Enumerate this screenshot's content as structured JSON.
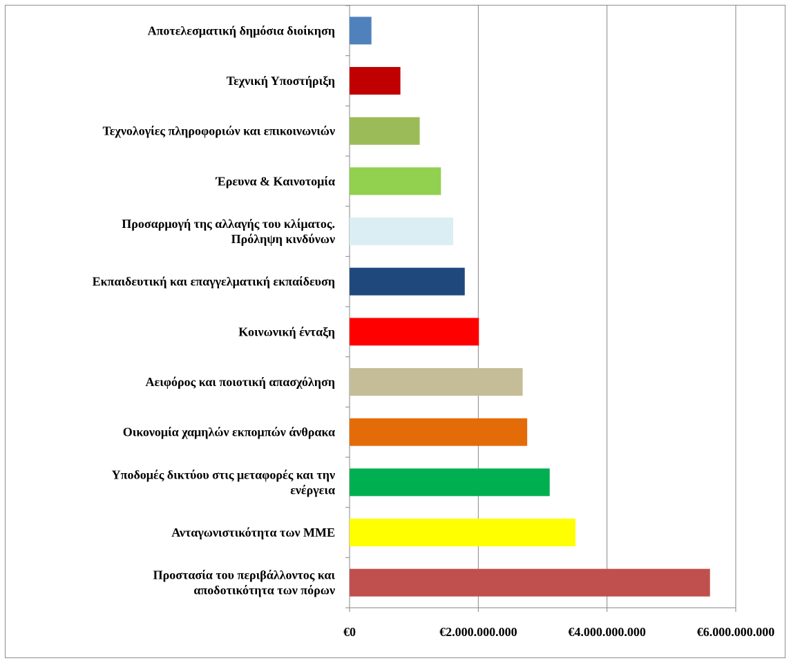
{
  "chart_data": {
    "type": "bar",
    "orientation": "horizontal",
    "categories": [
      [
        "Αποτελεσματική δημόσια διοίκηση"
      ],
      [
        "Τεχνική Υποστήριξη"
      ],
      [
        "Τεχνολογίες πληροφοριών και επικοινωνιών"
      ],
      [
        "Έρευνα & Καινοτομία"
      ],
      [
        "Προσαρμογή της αλλαγής του κλίματος.",
        "Πρόληψη κινδύνων"
      ],
      [
        "Εκπαιδευτική και επαγγελματική εκπαίδευση"
      ],
      [
        "Κοινωνική ένταξη"
      ],
      [
        "Αειφόρος και ποιοτική απασχόληση"
      ],
      [
        "Οικονομία χαμηλών εκπομπών άνθρακα"
      ],
      [
        "Υποδομές δικτύου στις μεταφορές και την",
        "ενέργεια"
      ],
      [
        "Ανταγωνιστικότητα των ΜΜΕ"
      ],
      [
        "Προστασία του περιβάλλοντος και",
        "αποδοτικότητα των πόρων"
      ]
    ],
    "values": [
      340000000,
      790000000,
      1090000000,
      1420000000,
      1610000000,
      1790000000,
      2010000000,
      2690000000,
      2760000000,
      3110000000,
      3510000000,
      5600000000
    ],
    "colors": [
      "#4f81bd",
      "#c00000",
      "#9bbb59",
      "#92d050",
      "#daeef3",
      "#1f497d",
      "#ff0000",
      "#c4bd97",
      "#e36c09",
      "#00b050",
      "#ffff00",
      "#c0504d"
    ],
    "xlim": [
      0,
      6000000000
    ],
    "xticks": [
      0,
      2000000000,
      4000000000,
      6000000000
    ],
    "xtick_labels": [
      "€0",
      "€2.000.000.000",
      "€4.000.000.000",
      "€6.000.000.000"
    ],
    "grid": true,
    "legend": "none",
    "title": "",
    "xlabel": "",
    "ylabel": ""
  }
}
